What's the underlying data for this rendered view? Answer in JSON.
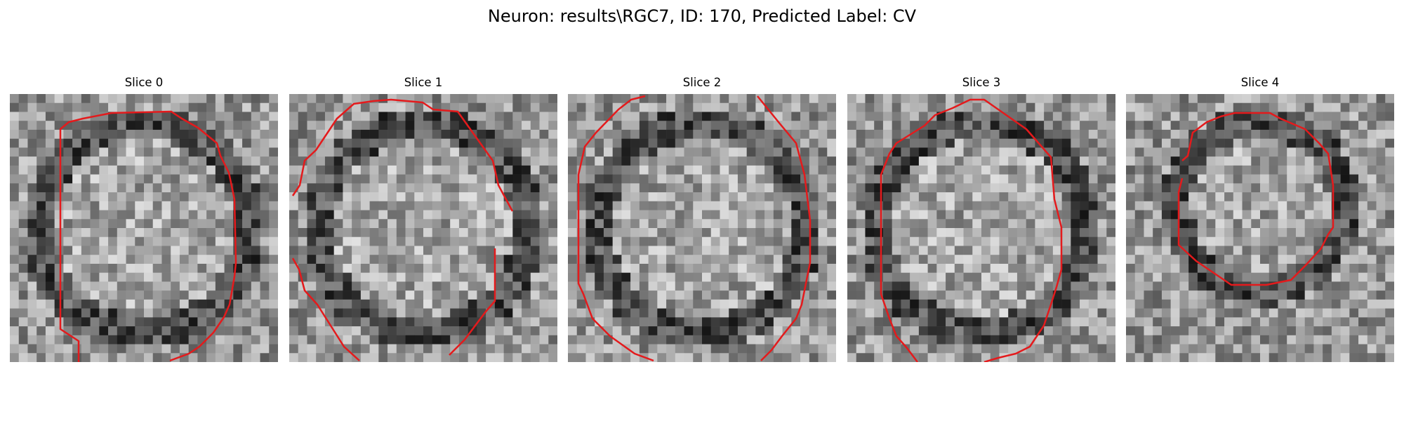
{
  "figure": {
    "title": "Neuron: results\\RGC7, ID: 170, Predicted Label: CV"
  },
  "panels": [
    {
      "title": "Slice 0"
    },
    {
      "title": "Slice 1"
    },
    {
      "title": "Slice 2"
    },
    {
      "title": "Slice 3"
    },
    {
      "title": "Slice 4"
    }
  ],
  "colors": {
    "contour": "#e41a1c",
    "colormap": "grayscale"
  }
}
